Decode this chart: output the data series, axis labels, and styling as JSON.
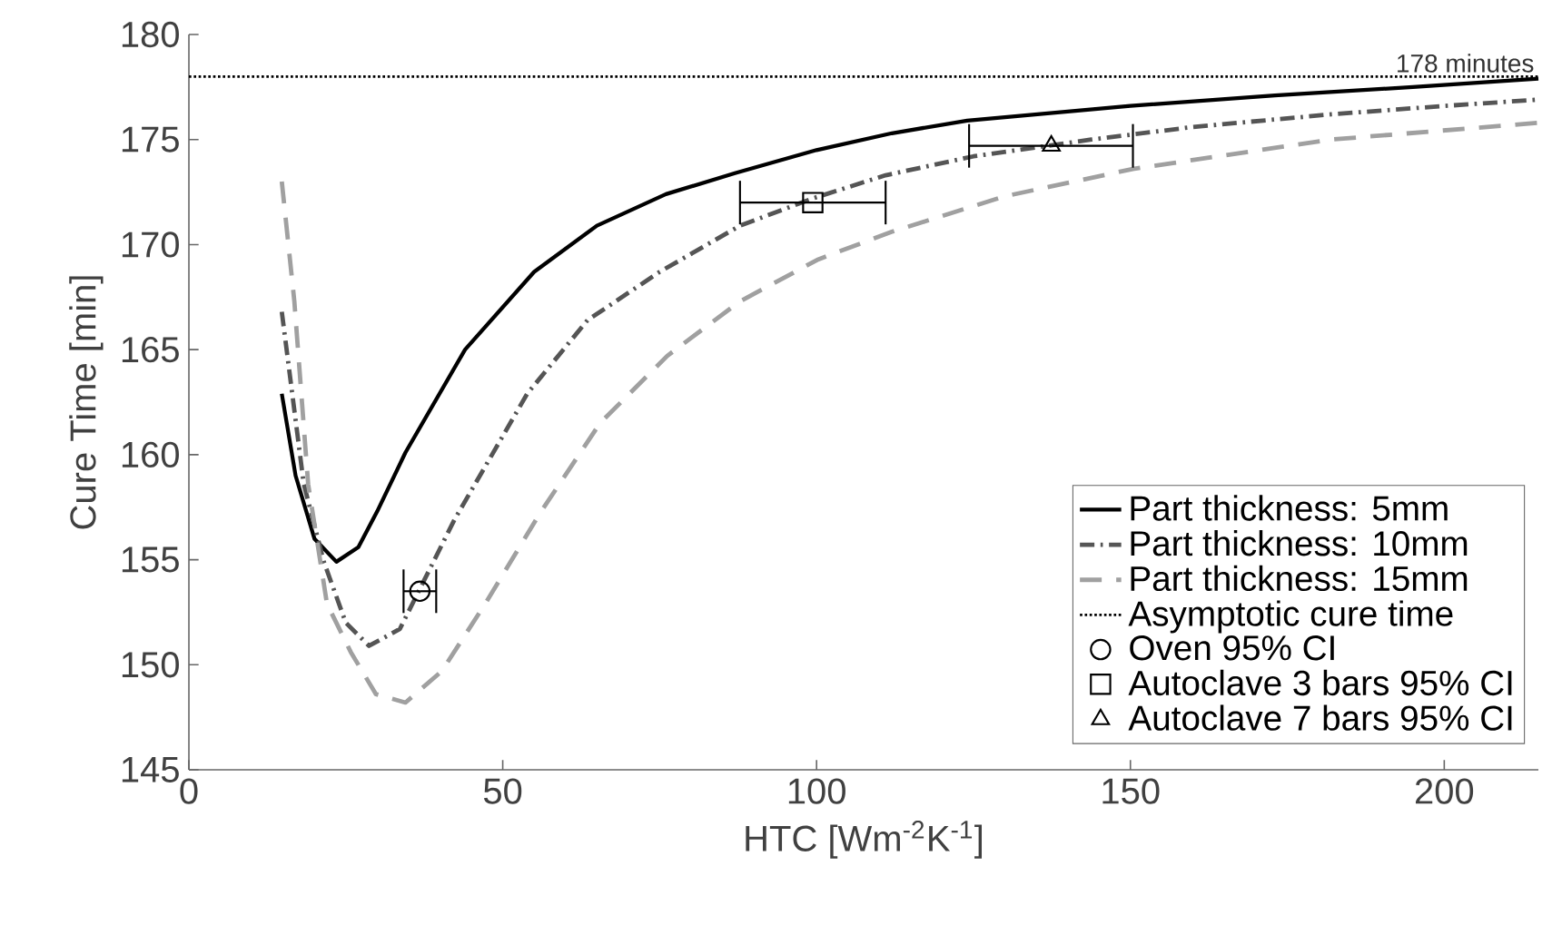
{
  "chart_data": {
    "type": "line",
    "xlabel": "HTC [Wm$^{-2}$K$^{-1}$]",
    "ylabel": "Cure Time [min]",
    "xlim": [
      0,
      215
    ],
    "ylim": [
      145,
      180
    ],
    "xticks": [
      0,
      50,
      100,
      150,
      200
    ],
    "yticks": [
      145,
      150,
      155,
      160,
      165,
      170,
      175,
      180
    ],
    "legend": "right",
    "grid": false,
    "series": [
      {
        "name": "Part thickness: 5mm",
        "color": "#000000",
        "line_style": "solid",
        "marker": "none",
        "x": [
          14.8,
          17,
          20,
          23.5,
          27,
          30,
          34.5,
          44,
          55,
          65,
          76,
          87,
          100,
          112,
          124,
          150,
          173,
          195,
          215
        ],
        "values": [
          162.9,
          159,
          156,
          154.9,
          155.6,
          157.3,
          160.1,
          165,
          168.7,
          170.9,
          172.4,
          173.4,
          174.5,
          175.3,
          175.9,
          176.6,
          177.1,
          177.5,
          177.9
        ]
      },
      {
        "name": "Part thickness: 10mm",
        "color": "#555555",
        "line_style": "dashdot",
        "marker": "none",
        "x": [
          14.8,
          18.3,
          21.5,
          25,
          28.7,
          33.6,
          42.3,
          53.9,
          63.5,
          75,
          87.8,
          99.4,
          111,
          125,
          143.8,
          160,
          182,
          200,
          215
        ],
        "values": [
          166.8,
          158.6,
          154.9,
          152,
          150.9,
          151.7,
          156.9,
          162.9,
          166.4,
          168.7,
          170.9,
          172.2,
          173.3,
          174.2,
          175,
          175.6,
          176.2,
          176.6,
          176.9
        ]
      },
      {
        "name": "Part thickness: 15mm",
        "color": "#a0a0a0",
        "line_style": "dashed",
        "marker": "none",
        "x": [
          14.8,
          16.8,
          19,
          22,
          25.8,
          29.8,
          34.5,
          40.3,
          47.2,
          55.9,
          65.5,
          76.2,
          87.8,
          100.3,
          111.9,
          130,
          150.4,
          182,
          215
        ],
        "values": [
          173,
          167.3,
          158.6,
          152.9,
          150.6,
          148.6,
          148.2,
          149.7,
          152.9,
          157.2,
          161.5,
          164.7,
          167.3,
          169.3,
          170.6,
          172.3,
          173.6,
          175,
          175.8
        ]
      },
      {
        "name": "Oven 95% CI",
        "type": "scatter",
        "color": "#000000",
        "marker": "circle",
        "x": [
          36.8
        ],
        "values": [
          153.5
        ],
        "xerrors": [
          [
            34.2,
            39.4
          ]
        ]
      },
      {
        "name": "Autoclave 3 bars 95% CI",
        "type": "scatter",
        "color": "#000000",
        "marker": "square",
        "x": [
          99.4
        ],
        "values": [
          172
        ],
        "xerrors": [
          [
            87.8,
            111
          ]
        ]
      },
      {
        "name": "Autoclave 7 bars 95% CI",
        "type": "scatter",
        "color": "#000000",
        "marker": "triangle",
        "x": [
          137.4
        ],
        "values": [
          174.7
        ],
        "xerrors": [
          [
            124.3,
            150.4
          ]
        ]
      }
    ],
    "ref_lines": [
      {
        "axis": "y",
        "value": 178,
        "label": "Asymptotic cure time",
        "color": "#000000",
        "line_style": "dotted"
      }
    ],
    "annotations": [
      {
        "text": "178 minutes",
        "x": 215,
        "y": 178
      }
    ]
  }
}
